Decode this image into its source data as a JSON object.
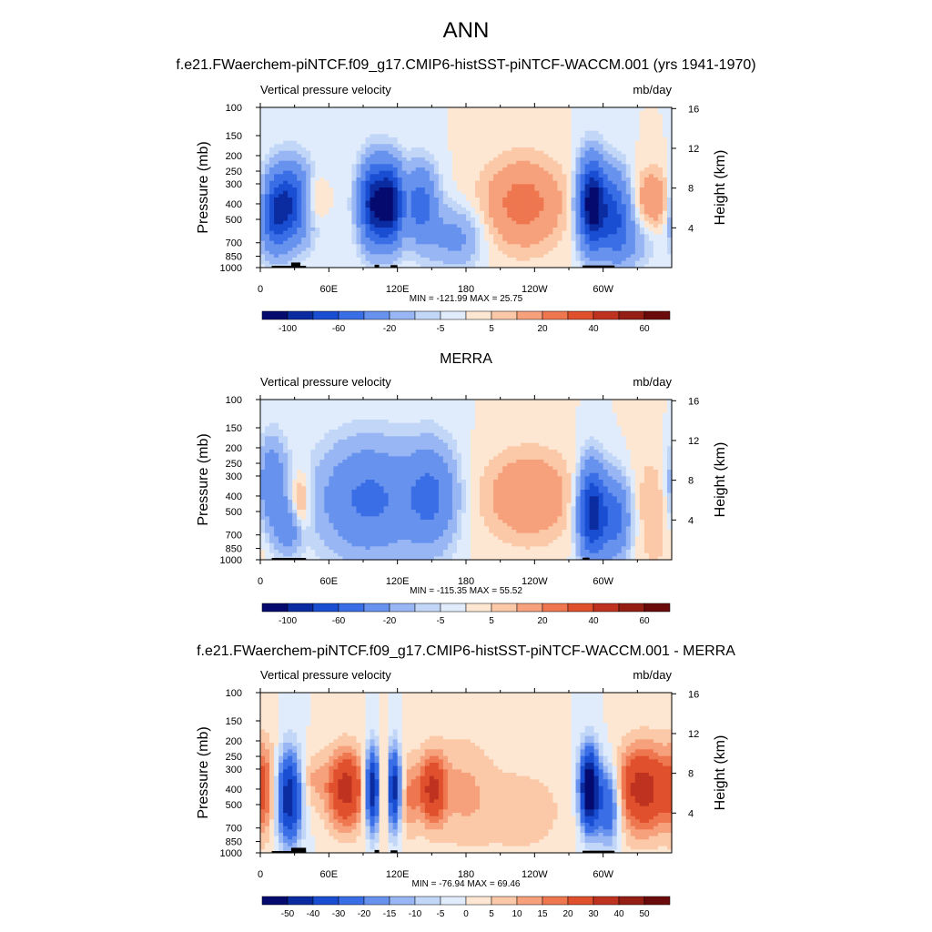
{
  "page": {
    "main_title": "ANN"
  },
  "colors": {
    "palette_blue_red": [
      "#050a6e",
      "#0a2ca0",
      "#1a4ed2",
      "#3a6ee6",
      "#6792ee",
      "#98b6f3",
      "#c2d7f8",
      "#e0ecfb",
      "#fde7d2",
      "#fbc9a8",
      "#f6a07c",
      "#ef7750",
      "#e0502c",
      "#bf3220",
      "#941d14",
      "#6a0a0a"
    ],
    "land_mask": "#000000"
  },
  "chart_data": [
    {
      "type": "heatmap",
      "title": "f.e21.FWaerchem-piNTCF.f09_g17.CMIP6-histSST-piNTCF-WACCM.001 (yrs 1941-1970)",
      "left_string": "Vertical pressure velocity",
      "right_string": "mb/day",
      "ylabel": "Pressure (mb)",
      "y2label": "Height (km)",
      "xticks": [
        "0",
        "60E",
        "120E",
        "180",
        "120W",
        "60W"
      ],
      "yticks": [
        100,
        150,
        200,
        250,
        300,
        400,
        500,
        700,
        850,
        1000
      ],
      "y2ticks": [
        16,
        12,
        8,
        4
      ],
      "xlim": [
        0,
        360
      ],
      "ylim": [
        1000,
        100
      ],
      "min_max": "MIN = -121.99  MAX =  25.75",
      "colorbar": {
        "levels": [
          -120,
          -100,
          -80,
          -60,
          -40,
          -20,
          -10,
          -5,
          0,
          5,
          10,
          20,
          30,
          40,
          50,
          60,
          70
        ],
        "labels": [
          "-100",
          "-60",
          "-20",
          "-5",
          "5",
          "20",
          "40",
          "60"
        ]
      },
      "blobs": [
        {
          "lon": 25,
          "p": 400,
          "v": -80,
          "sx": 14,
          "sy": 0.38
        },
        {
          "lon": 12,
          "p": 500,
          "v": -40,
          "sx": 8,
          "sy": 0.35
        },
        {
          "lon": 45,
          "p": 380,
          "v": 25,
          "sx": 8,
          "sy": 0.25
        },
        {
          "lon": 100,
          "p": 400,
          "v": -100,
          "sx": 9,
          "sy": 0.4
        },
        {
          "lon": 115,
          "p": 400,
          "v": -90,
          "sx": 7,
          "sy": 0.38
        },
        {
          "lon": 140,
          "p": 400,
          "v": -50,
          "sx": 10,
          "sy": 0.38
        },
        {
          "lon": 170,
          "p": 650,
          "v": -25,
          "sx": 16,
          "sy": 0.3
        },
        {
          "lon": 230,
          "p": 400,
          "v": 25,
          "sx": 25,
          "sy": 0.45
        },
        {
          "lon": 290,
          "p": 400,
          "v": -115,
          "sx": 8,
          "sy": 0.42
        },
        {
          "lon": 310,
          "p": 450,
          "v": -60,
          "sx": 10,
          "sy": 0.4
        },
        {
          "lon": 345,
          "p": 380,
          "v": 20,
          "sx": 14,
          "sy": 0.32
        },
        {
          "lon": 320,
          "p": 700,
          "v": -20,
          "sx": 16,
          "sy": 0.25
        }
      ],
      "land": [
        {
          "lon0": 10,
          "lon1": 40,
          "p0": 975
        },
        {
          "lon0": 27,
          "lon1": 35,
          "p0": 930
        },
        {
          "lon0": 100,
          "lon1": 104,
          "p0": 960
        },
        {
          "lon0": 114,
          "lon1": 120,
          "p0": 965
        },
        {
          "lon0": 282,
          "lon1": 310,
          "p0": 970
        }
      ]
    },
    {
      "type": "heatmap",
      "title": "MERRA",
      "left_string": "Vertical pressure velocity",
      "right_string": "mb/day",
      "ylabel": "Pressure (mb)",
      "y2label": "Height (km)",
      "xticks": [
        "0",
        "60E",
        "120E",
        "180",
        "120W",
        "60W"
      ],
      "yticks": [
        100,
        150,
        200,
        250,
        300,
        400,
        500,
        700,
        850,
        1000
      ],
      "y2ticks": [
        16,
        12,
        8,
        4
      ],
      "xlim": [
        0,
        360
      ],
      "ylim": [
        1000,
        100
      ],
      "min_max": "MIN = -115.35  MAX =  55.52",
      "colorbar": {
        "levels": [
          -120,
          -100,
          -80,
          -60,
          -40,
          -20,
          -10,
          -5,
          0,
          5,
          10,
          20,
          30,
          40,
          50,
          60,
          70
        ],
        "labels": [
          "-100",
          "-60",
          "-20",
          "-5",
          "5",
          "20",
          "40",
          "60"
        ]
      },
      "blobs": [
        {
          "lon": 10,
          "p": 350,
          "v": -40,
          "sx": 9,
          "sy": 0.45
        },
        {
          "lon": 35,
          "p": 450,
          "v": 20,
          "sx": 6,
          "sy": 0.3
        },
        {
          "lon": 25,
          "p": 650,
          "v": -30,
          "sx": 8,
          "sy": 0.25
        },
        {
          "lon": 95,
          "p": 420,
          "v": -45,
          "sx": 30,
          "sy": 0.55
        },
        {
          "lon": 150,
          "p": 400,
          "v": -40,
          "sx": 15,
          "sy": 0.5
        },
        {
          "lon": 235,
          "p": 400,
          "v": 20,
          "sx": 28,
          "sy": 0.45
        },
        {
          "lon": 290,
          "p": 500,
          "v": -90,
          "sx": 8,
          "sy": 0.45
        },
        {
          "lon": 310,
          "p": 550,
          "v": -50,
          "sx": 10,
          "sy": 0.4
        },
        {
          "lon": 345,
          "p": 500,
          "v": 10,
          "sx": 16,
          "sy": 0.6
        }
      ],
      "land": [
        {
          "lon0": 10,
          "lon1": 40,
          "p0": 975
        },
        {
          "lon0": 282,
          "lon1": 288,
          "p0": 970
        }
      ]
    },
    {
      "type": "heatmap",
      "title": "f.e21.FWaerchem-piNTCF.f09_g17.CMIP6-histSST-piNTCF-WACCM.001 - MERRA",
      "left_string": "Vertical pressure velocity",
      "right_string": "mb/day",
      "ylabel": "Pressure (mb)",
      "y2label": "Height (km)",
      "xticks": [
        "0",
        "60E",
        "120E",
        "180",
        "120W",
        "60W"
      ],
      "yticks": [
        100,
        150,
        200,
        250,
        300,
        400,
        500,
        700,
        850,
        1000
      ],
      "y2ticks": [
        16,
        12,
        8,
        4
      ],
      "xlim": [
        0,
        360
      ],
      "ylim": [
        1000,
        100
      ],
      "min_max": "MIN = -76.94  MAX =  69.46",
      "colorbar": {
        "levels": [
          -60,
          -50,
          -40,
          -30,
          -20,
          -15,
          -10,
          -5,
          0,
          5,
          10,
          15,
          20,
          30,
          40,
          50,
          60
        ],
        "labels": [
          "-50",
          "-40",
          "-30",
          "-20",
          "-15",
          "-10",
          "-5",
          "0",
          "5",
          "10",
          "15",
          "20",
          "30",
          "40",
          "50"
        ]
      },
      "blobs": [
        {
          "lon": 5,
          "p": 400,
          "v": 15,
          "sx": 8,
          "sy": 0.5
        },
        {
          "lon": 25,
          "p": 450,
          "v": -50,
          "sx": 8,
          "sy": 0.45
        },
        {
          "lon": 45,
          "p": 350,
          "v": 10,
          "sx": 8,
          "sy": 0.3
        },
        {
          "lon": 75,
          "p": 400,
          "v": 35,
          "sx": 12,
          "sy": 0.4
        },
        {
          "lon": 99,
          "p": 400,
          "v": -60,
          "sx": 5,
          "sy": 0.4
        },
        {
          "lon": 108,
          "p": 400,
          "v": 35,
          "sx": 5,
          "sy": 0.4
        },
        {
          "lon": 116,
          "p": 400,
          "v": -55,
          "sx": 5,
          "sy": 0.4
        },
        {
          "lon": 130,
          "p": 450,
          "v": 15,
          "sx": 6,
          "sy": 0.4
        },
        {
          "lon": 150,
          "p": 400,
          "v": 30,
          "sx": 8,
          "sy": 0.35
        },
        {
          "lon": 175,
          "p": 400,
          "v": 10,
          "sx": 20,
          "sy": 0.6
        },
        {
          "lon": 230,
          "p": 550,
          "v": 8,
          "sx": 30,
          "sy": 0.5
        },
        {
          "lon": 288,
          "p": 400,
          "v": -70,
          "sx": 6,
          "sy": 0.4
        },
        {
          "lon": 305,
          "p": 500,
          "v": -35,
          "sx": 7,
          "sy": 0.4
        },
        {
          "lon": 335,
          "p": 400,
          "v": 35,
          "sx": 18,
          "sy": 0.45
        }
      ],
      "land": [
        {
          "lon0": 10,
          "lon1": 40,
          "p0": 975
        },
        {
          "lon0": 27,
          "lon1": 40,
          "p0": 930
        },
        {
          "lon0": 100,
          "lon1": 104,
          "p0": 960
        },
        {
          "lon0": 114,
          "lon1": 120,
          "p0": 965
        },
        {
          "lon0": 282,
          "lon1": 310,
          "p0": 970
        }
      ]
    }
  ]
}
